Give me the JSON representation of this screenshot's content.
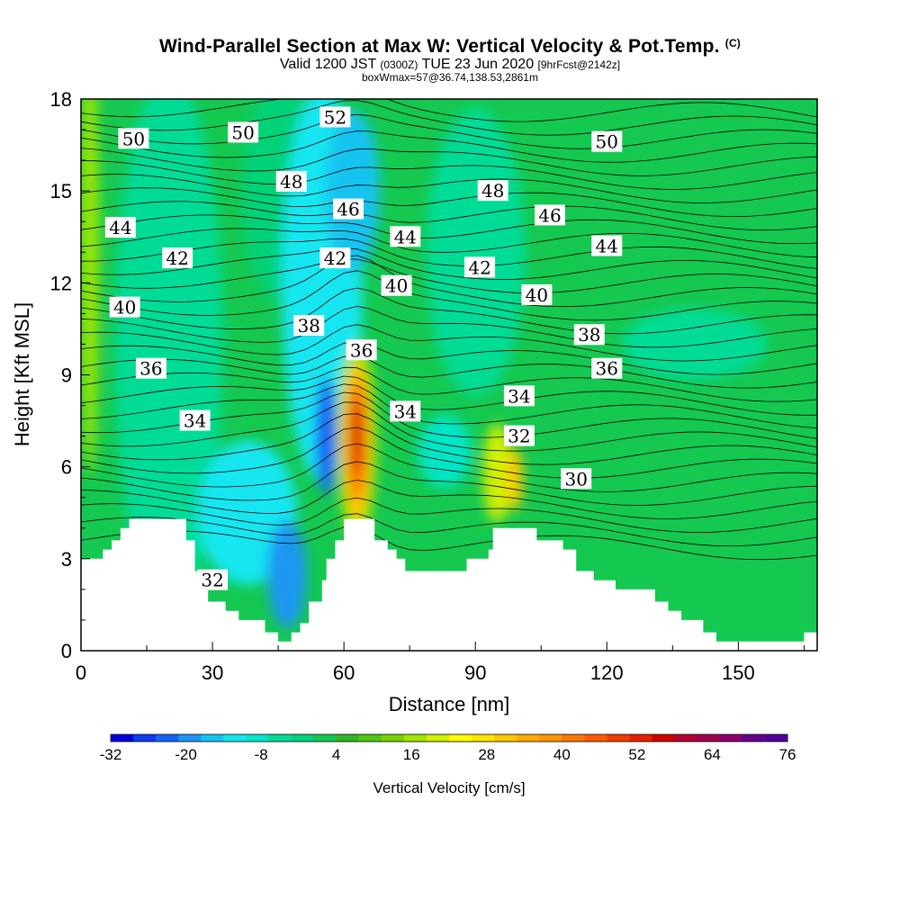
{
  "title": {
    "main": "Wind-Parallel Section at Max W: Vertical Velocity & Pot.Temp.",
    "copyright": "(C)",
    "valid_prefix": "Valid 1200 JST",
    "valid_utc": "(0300Z)",
    "valid_date": "TUE 23 Jun 2020",
    "forecast": "[9hrFcst@2142z]",
    "box_info": "boxWmax=57@36.74,138.53,2861m"
  },
  "chart_data": {
    "type": "heatmap",
    "xlabel": "Distance [nm]",
    "ylabel": "Height [Kft MSL]",
    "xlim": [
      0,
      168
    ],
    "ylim": [
      0,
      18
    ],
    "x_ticks": [
      0,
      30,
      60,
      90,
      120,
      150
    ],
    "y_ticks": [
      0,
      3,
      6,
      9,
      12,
      15,
      18
    ],
    "colorbar": {
      "label": "Vertical Velocity [cm/s]",
      "tick_labels": [
        -32,
        -20,
        -8,
        4,
        16,
        28,
        40,
        52,
        64,
        76
      ],
      "min": -32,
      "max": 76,
      "step": 4,
      "colors": [
        "#0000dd",
        "#0a3cf0",
        "#1464f5",
        "#1e96f0",
        "#14c3f0",
        "#14e6f0",
        "#00e6c8",
        "#00dc96",
        "#00d278",
        "#14c850",
        "#32b428",
        "#50c814",
        "#78d200",
        "#a0e600",
        "#d2f000",
        "#ffff00",
        "#ffe600",
        "#ffc800",
        "#ffaa00",
        "#ff9600",
        "#ff7800",
        "#ff5a00",
        "#f03c00",
        "#e61e00",
        "#d20000",
        "#b40032",
        "#a00050",
        "#8c006e",
        "#64008c",
        "#50009b"
      ]
    },
    "theta_contour_labels": [
      {
        "x": 12,
        "y": 16.7,
        "label": "50"
      },
      {
        "x": 37,
        "y": 16.9,
        "label": "50"
      },
      {
        "x": 58,
        "y": 17.4,
        "label": "52"
      },
      {
        "x": 120,
        "y": 16.6,
        "label": "50"
      },
      {
        "x": 48,
        "y": 15.3,
        "label": "48"
      },
      {
        "x": 94,
        "y": 15.0,
        "label": "48"
      },
      {
        "x": 61,
        "y": 14.4,
        "label": "46"
      },
      {
        "x": 107,
        "y": 14.2,
        "label": "46"
      },
      {
        "x": 9,
        "y": 13.8,
        "label": "44"
      },
      {
        "x": 74,
        "y": 13.5,
        "label": "44"
      },
      {
        "x": 120,
        "y": 13.2,
        "label": "44"
      },
      {
        "x": 22,
        "y": 12.8,
        "label": "42"
      },
      {
        "x": 58,
        "y": 12.8,
        "label": "42"
      },
      {
        "x": 91,
        "y": 12.5,
        "label": "42"
      },
      {
        "x": 10,
        "y": 11.2,
        "label": "40"
      },
      {
        "x": 72,
        "y": 11.9,
        "label": "40"
      },
      {
        "x": 104,
        "y": 11.6,
        "label": "40"
      },
      {
        "x": 52,
        "y": 10.6,
        "label": "38"
      },
      {
        "x": 116,
        "y": 10.3,
        "label": "38"
      },
      {
        "x": 16,
        "y": 9.2,
        "label": "36"
      },
      {
        "x": 64,
        "y": 9.8,
        "label": "36"
      },
      {
        "x": 120,
        "y": 9.2,
        "label": "36"
      },
      {
        "x": 26,
        "y": 7.5,
        "label": "34"
      },
      {
        "x": 74,
        "y": 7.8,
        "label": "34"
      },
      {
        "x": 100,
        "y": 8.3,
        "label": "34"
      },
      {
        "x": 100,
        "y": 7.0,
        "label": "32"
      },
      {
        "x": 30,
        "y": 2.3,
        "label": "32"
      },
      {
        "x": 113,
        "y": 5.6,
        "label": "30"
      }
    ],
    "terrain_profile_kft": [
      [
        0,
        3.0
      ],
      [
        5,
        3.0
      ],
      [
        5,
        3.3
      ],
      [
        7,
        3.3
      ],
      [
        7,
        3.6
      ],
      [
        9,
        3.6
      ],
      [
        9,
        4.0
      ],
      [
        11,
        4.0
      ],
      [
        11,
        4.3
      ],
      [
        24,
        4.3
      ],
      [
        24,
        3.6
      ],
      [
        26,
        3.6
      ],
      [
        26,
        2.6
      ],
      [
        29,
        2.6
      ],
      [
        29,
        1.6
      ],
      [
        33,
        1.6
      ],
      [
        33,
        1.3
      ],
      [
        36,
        1.3
      ],
      [
        36,
        1.0
      ],
      [
        42,
        1.0
      ],
      [
        42,
        0.6
      ],
      [
        45,
        0.6
      ],
      [
        45,
        0.3
      ],
      [
        48,
        0.3
      ],
      [
        48,
        0.6
      ],
      [
        50,
        0.6
      ],
      [
        50,
        0.9
      ],
      [
        52,
        0.9
      ],
      [
        52,
        1.6
      ],
      [
        55,
        1.6
      ],
      [
        55,
        2.3
      ],
      [
        56,
        2.3
      ],
      [
        56,
        3.0
      ],
      [
        58,
        3.0
      ],
      [
        58,
        3.6
      ],
      [
        60,
        3.6
      ],
      [
        60,
        4.3
      ],
      [
        67,
        4.3
      ],
      [
        67,
        3.6
      ],
      [
        70,
        3.6
      ],
      [
        70,
        3.3
      ],
      [
        72,
        3.3
      ],
      [
        72,
        3.0
      ],
      [
        74,
        3.0
      ],
      [
        74,
        2.6
      ],
      [
        88,
        2.6
      ],
      [
        88,
        3.0
      ],
      [
        93,
        3.0
      ],
      [
        93,
        3.3
      ],
      [
        94,
        3.3
      ],
      [
        94,
        4.0
      ],
      [
        104,
        4.0
      ],
      [
        104,
        3.6
      ],
      [
        110,
        3.6
      ],
      [
        110,
        3.3
      ],
      [
        113,
        3.3
      ],
      [
        113,
        2.6
      ],
      [
        117,
        2.6
      ],
      [
        117,
        2.3
      ],
      [
        122,
        2.3
      ],
      [
        122,
        2.0
      ],
      [
        131,
        2.0
      ],
      [
        131,
        1.6
      ],
      [
        134,
        1.6
      ],
      [
        134,
        1.3
      ],
      [
        137,
        1.3
      ],
      [
        137,
        1.0
      ],
      [
        142,
        1.0
      ],
      [
        142,
        0.6
      ],
      [
        145,
        0.6
      ],
      [
        145,
        0.3
      ],
      [
        165,
        0.3
      ],
      [
        165,
        0.6
      ],
      [
        168,
        0.6
      ]
    ]
  }
}
